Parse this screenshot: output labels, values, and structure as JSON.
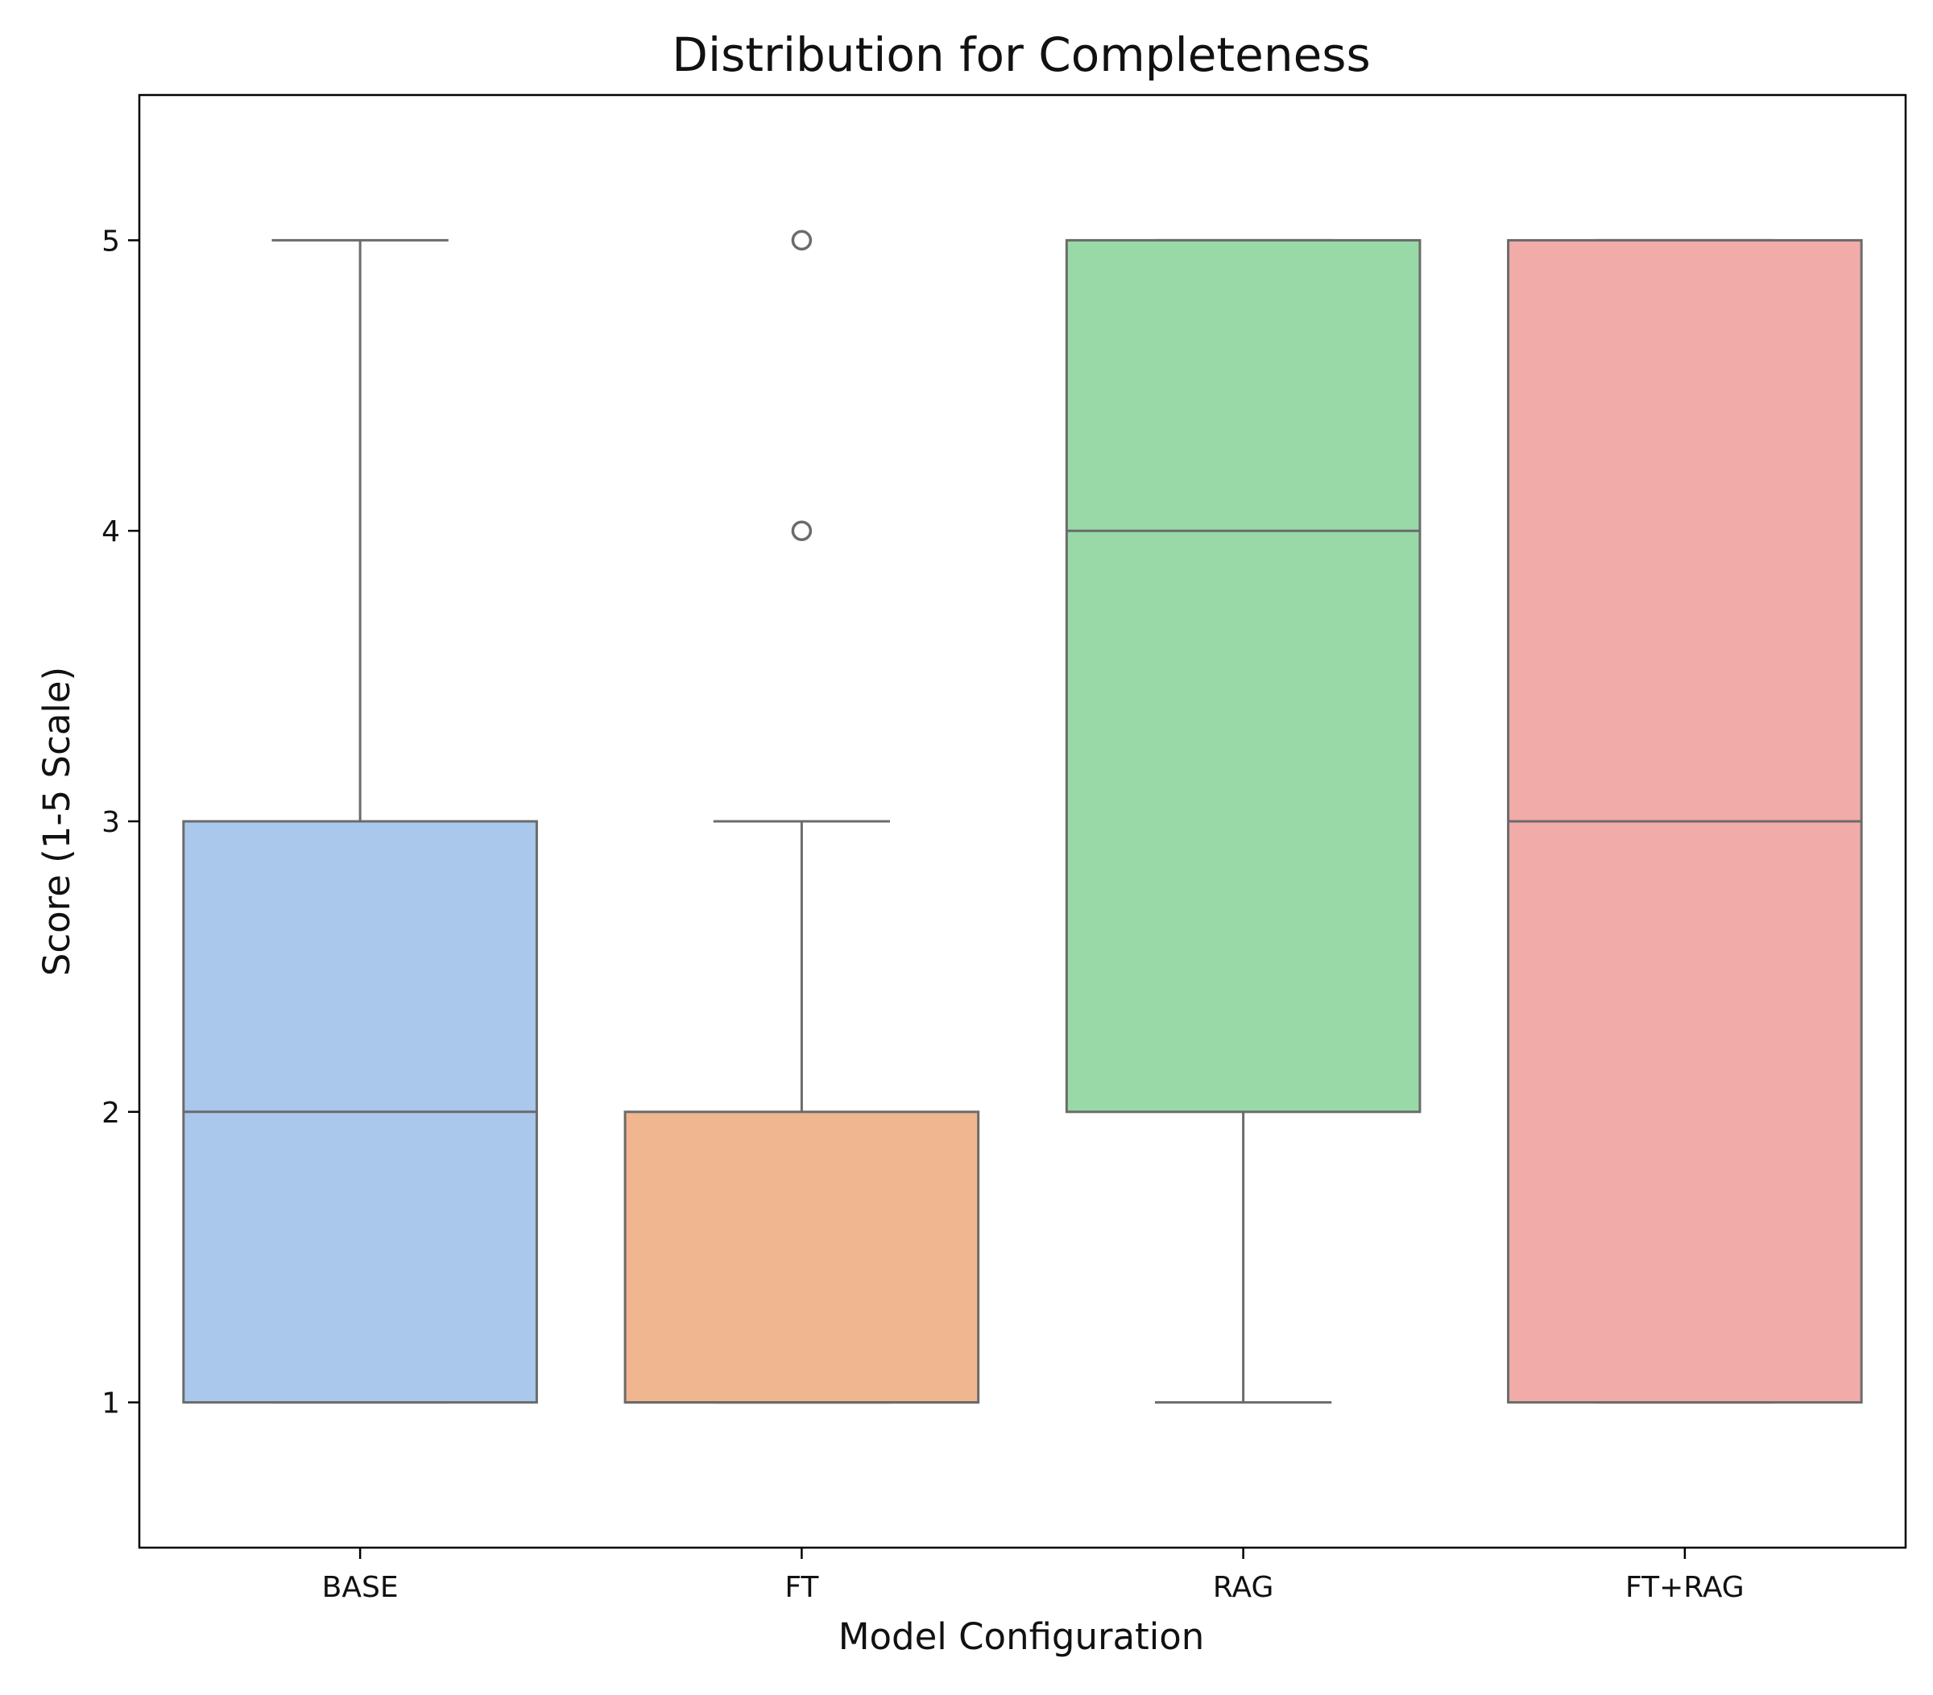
{
  "chart_data": {
    "type": "box",
    "title": "Distribution for Completeness",
    "xlabel": "Model Configuration",
    "ylabel": "Score (1-5 Scale)",
    "ylim": [
      0.5,
      5.5
    ],
    "yticks": [
      1,
      2,
      3,
      4,
      5
    ],
    "grid": false,
    "categories": [
      "BASE",
      "FT",
      "RAG",
      "FT+RAG"
    ],
    "boxes": [
      {
        "category": "BASE",
        "whisker_low": 1,
        "q1": 1,
        "median": 2,
        "q3": 3,
        "whisker_high": 5,
        "outliers": [],
        "color": "#a9c8ec"
      },
      {
        "category": "FT",
        "whisker_low": 1,
        "q1": 1,
        "median": 1,
        "q3": 2,
        "whisker_high": 3,
        "outliers": [
          4,
          5
        ],
        "color": "#f0b690"
      },
      {
        "category": "RAG",
        "whisker_low": 1,
        "q1": 2,
        "median": 4,
        "q3": 5,
        "whisker_high": 5,
        "outliers": [],
        "color": "#98d9a7"
      },
      {
        "category": "FT+RAG",
        "whisker_low": 1,
        "q1": 1,
        "median": 3,
        "q3": 5,
        "whisker_high": 5,
        "outliers": [],
        "color": "#f1aba9"
      }
    ],
    "line_color": "#6b6b6b"
  }
}
